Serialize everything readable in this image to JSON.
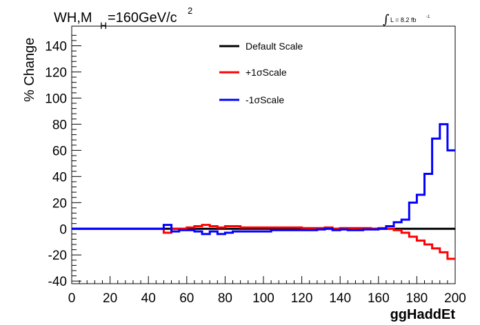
{
  "header": {
    "process": "WH,M",
    "subscript": "H",
    "mass": "=160GeV/c",
    "superscript": "2",
    "lumi_text": "L = 8.2 fb",
    "lumi_exp": "-1"
  },
  "chart_data": {
    "type": "line",
    "xlabel": "ggHaddEt",
    "ylabel": "% Change",
    "xlim": [
      0,
      200
    ],
    "ylim": [
      -42,
      155
    ],
    "x_ticks": [
      0,
      20,
      40,
      60,
      80,
      100,
      120,
      140,
      160,
      180,
      200
    ],
    "y_ticks": [
      -40,
      -20,
      0,
      20,
      40,
      60,
      80,
      100,
      120,
      140
    ],
    "bin_width": 4,
    "grid": false,
    "legend_position": "top-center",
    "series": [
      {
        "name": "Default Scale",
        "color": "#000000",
        "values": [
          0,
          0,
          0,
          0,
          0,
          0,
          0,
          0,
          0,
          0,
          0,
          0,
          0,
          0,
          0,
          0,
          0,
          0,
          0,
          0,
          0,
          0,
          0,
          0,
          0,
          0,
          0,
          0,
          0,
          0,
          0,
          0,
          0,
          0,
          0,
          0,
          0,
          0,
          0,
          0,
          0,
          0,
          0,
          0,
          0,
          0,
          0,
          0,
          0,
          0
        ]
      },
      {
        "name": "+1σScale",
        "color": "#ff0000",
        "values": [
          0,
          0,
          0,
          0,
          0,
          0,
          0,
          0,
          0,
          0,
          0,
          0,
          -3,
          0,
          0,
          1,
          2,
          3,
          2,
          1,
          2,
          2,
          1,
          1,
          1,
          1,
          1,
          1,
          1,
          1,
          0.5,
          0.5,
          0.5,
          1,
          0,
          0.5,
          0.5,
          0.5,
          0.5,
          0,
          0.5,
          0,
          -1,
          -3,
          -6,
          -9,
          -12,
          -15,
          -18,
          -23
        ]
      },
      {
        "name": "-1σScale",
        "color": "#0000ff",
        "values": [
          0,
          0,
          0,
          0,
          0,
          0,
          0,
          0,
          0,
          0,
          0,
          0,
          3,
          -2,
          -1,
          -1,
          -2,
          -4,
          -2,
          -4,
          -3,
          -2,
          -2,
          -2,
          -2,
          -2,
          -1,
          -1,
          -1,
          -1,
          -1,
          -1,
          -0.5,
          0,
          -1,
          -0.5,
          -1,
          -1,
          -0.5,
          -0.5,
          0,
          2,
          5,
          7,
          20,
          26,
          42,
          69,
          80,
          60
        ]
      }
    ]
  }
}
